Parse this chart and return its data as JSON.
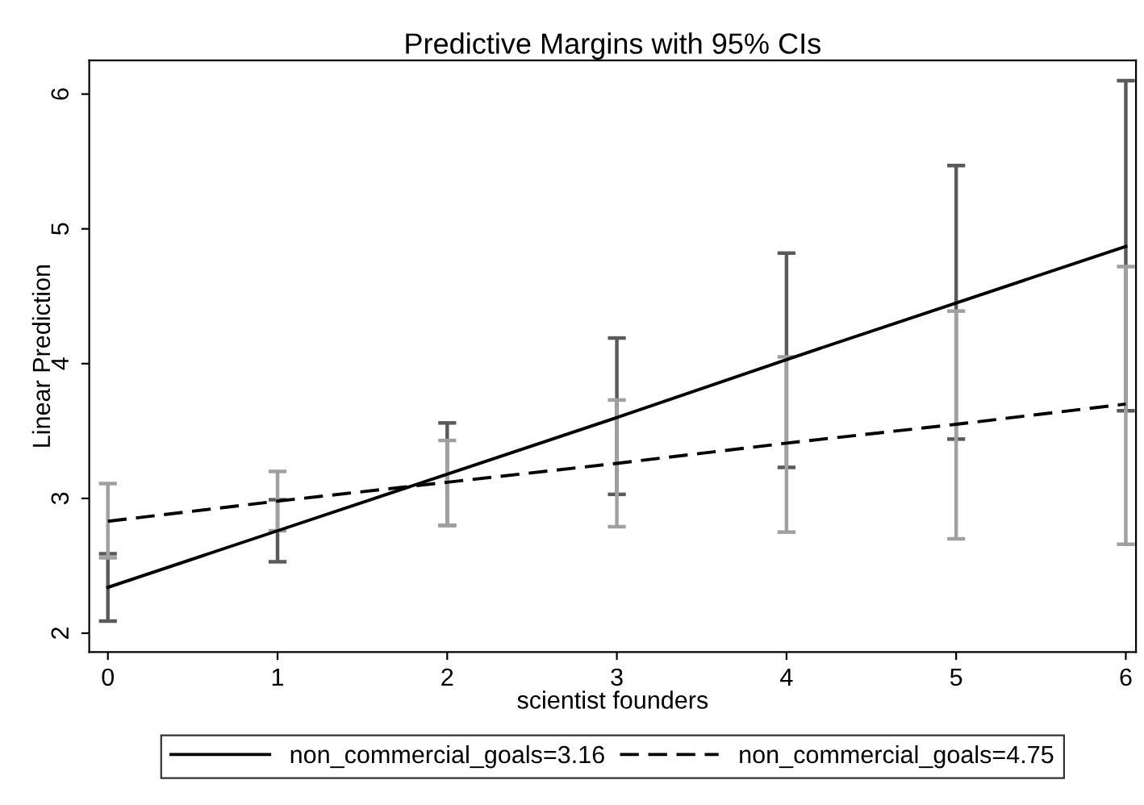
{
  "chart_data": {
    "type": "line",
    "title": "Predictive Margins with 95% CIs",
    "xlabel": "scientist founders",
    "ylabel": "Linear Prediction",
    "x": [
      0,
      1,
      2,
      3,
      4,
      5,
      6
    ],
    "series": [
      {
        "name": "non_commercial_goals=3.16",
        "color": "#000000",
        "line_style": "solid",
        "values": [
          2.34,
          2.76,
          3.18,
          3.6,
          4.03,
          4.45,
          4.87
        ],
        "errors": [
          [
            2.09,
            2.59
          ],
          [
            2.53,
            2.99
          ],
          [
            2.8,
            3.56
          ],
          [
            3.03,
            4.19
          ],
          [
            3.23,
            4.82
          ],
          [
            3.44,
            5.47
          ],
          [
            3.65,
            6.1
          ]
        ]
      },
      {
        "name": "non_commercial_goals=4.75",
        "color": "#000000",
        "line_style": "dashed",
        "values": [
          2.83,
          2.98,
          3.12,
          3.26,
          3.41,
          3.55,
          3.7
        ],
        "errors": [
          [
            2.56,
            3.11
          ],
          [
            2.76,
            3.2
          ],
          [
            2.8,
            3.43
          ],
          [
            2.79,
            3.73
          ],
          [
            2.75,
            4.05
          ],
          [
            2.7,
            4.39
          ],
          [
            2.66,
            4.72
          ]
        ]
      }
    ],
    "xlim": [
      -0.11,
      6.06
    ],
    "xticks": [
      0,
      1,
      2,
      3,
      4,
      5,
      6
    ],
    "ylim": [
      1.86,
      6.25
    ],
    "yticks": [
      2,
      3,
      4,
      5,
      6
    ],
    "grid": false,
    "legend": "bottom",
    "marker": "none"
  }
}
